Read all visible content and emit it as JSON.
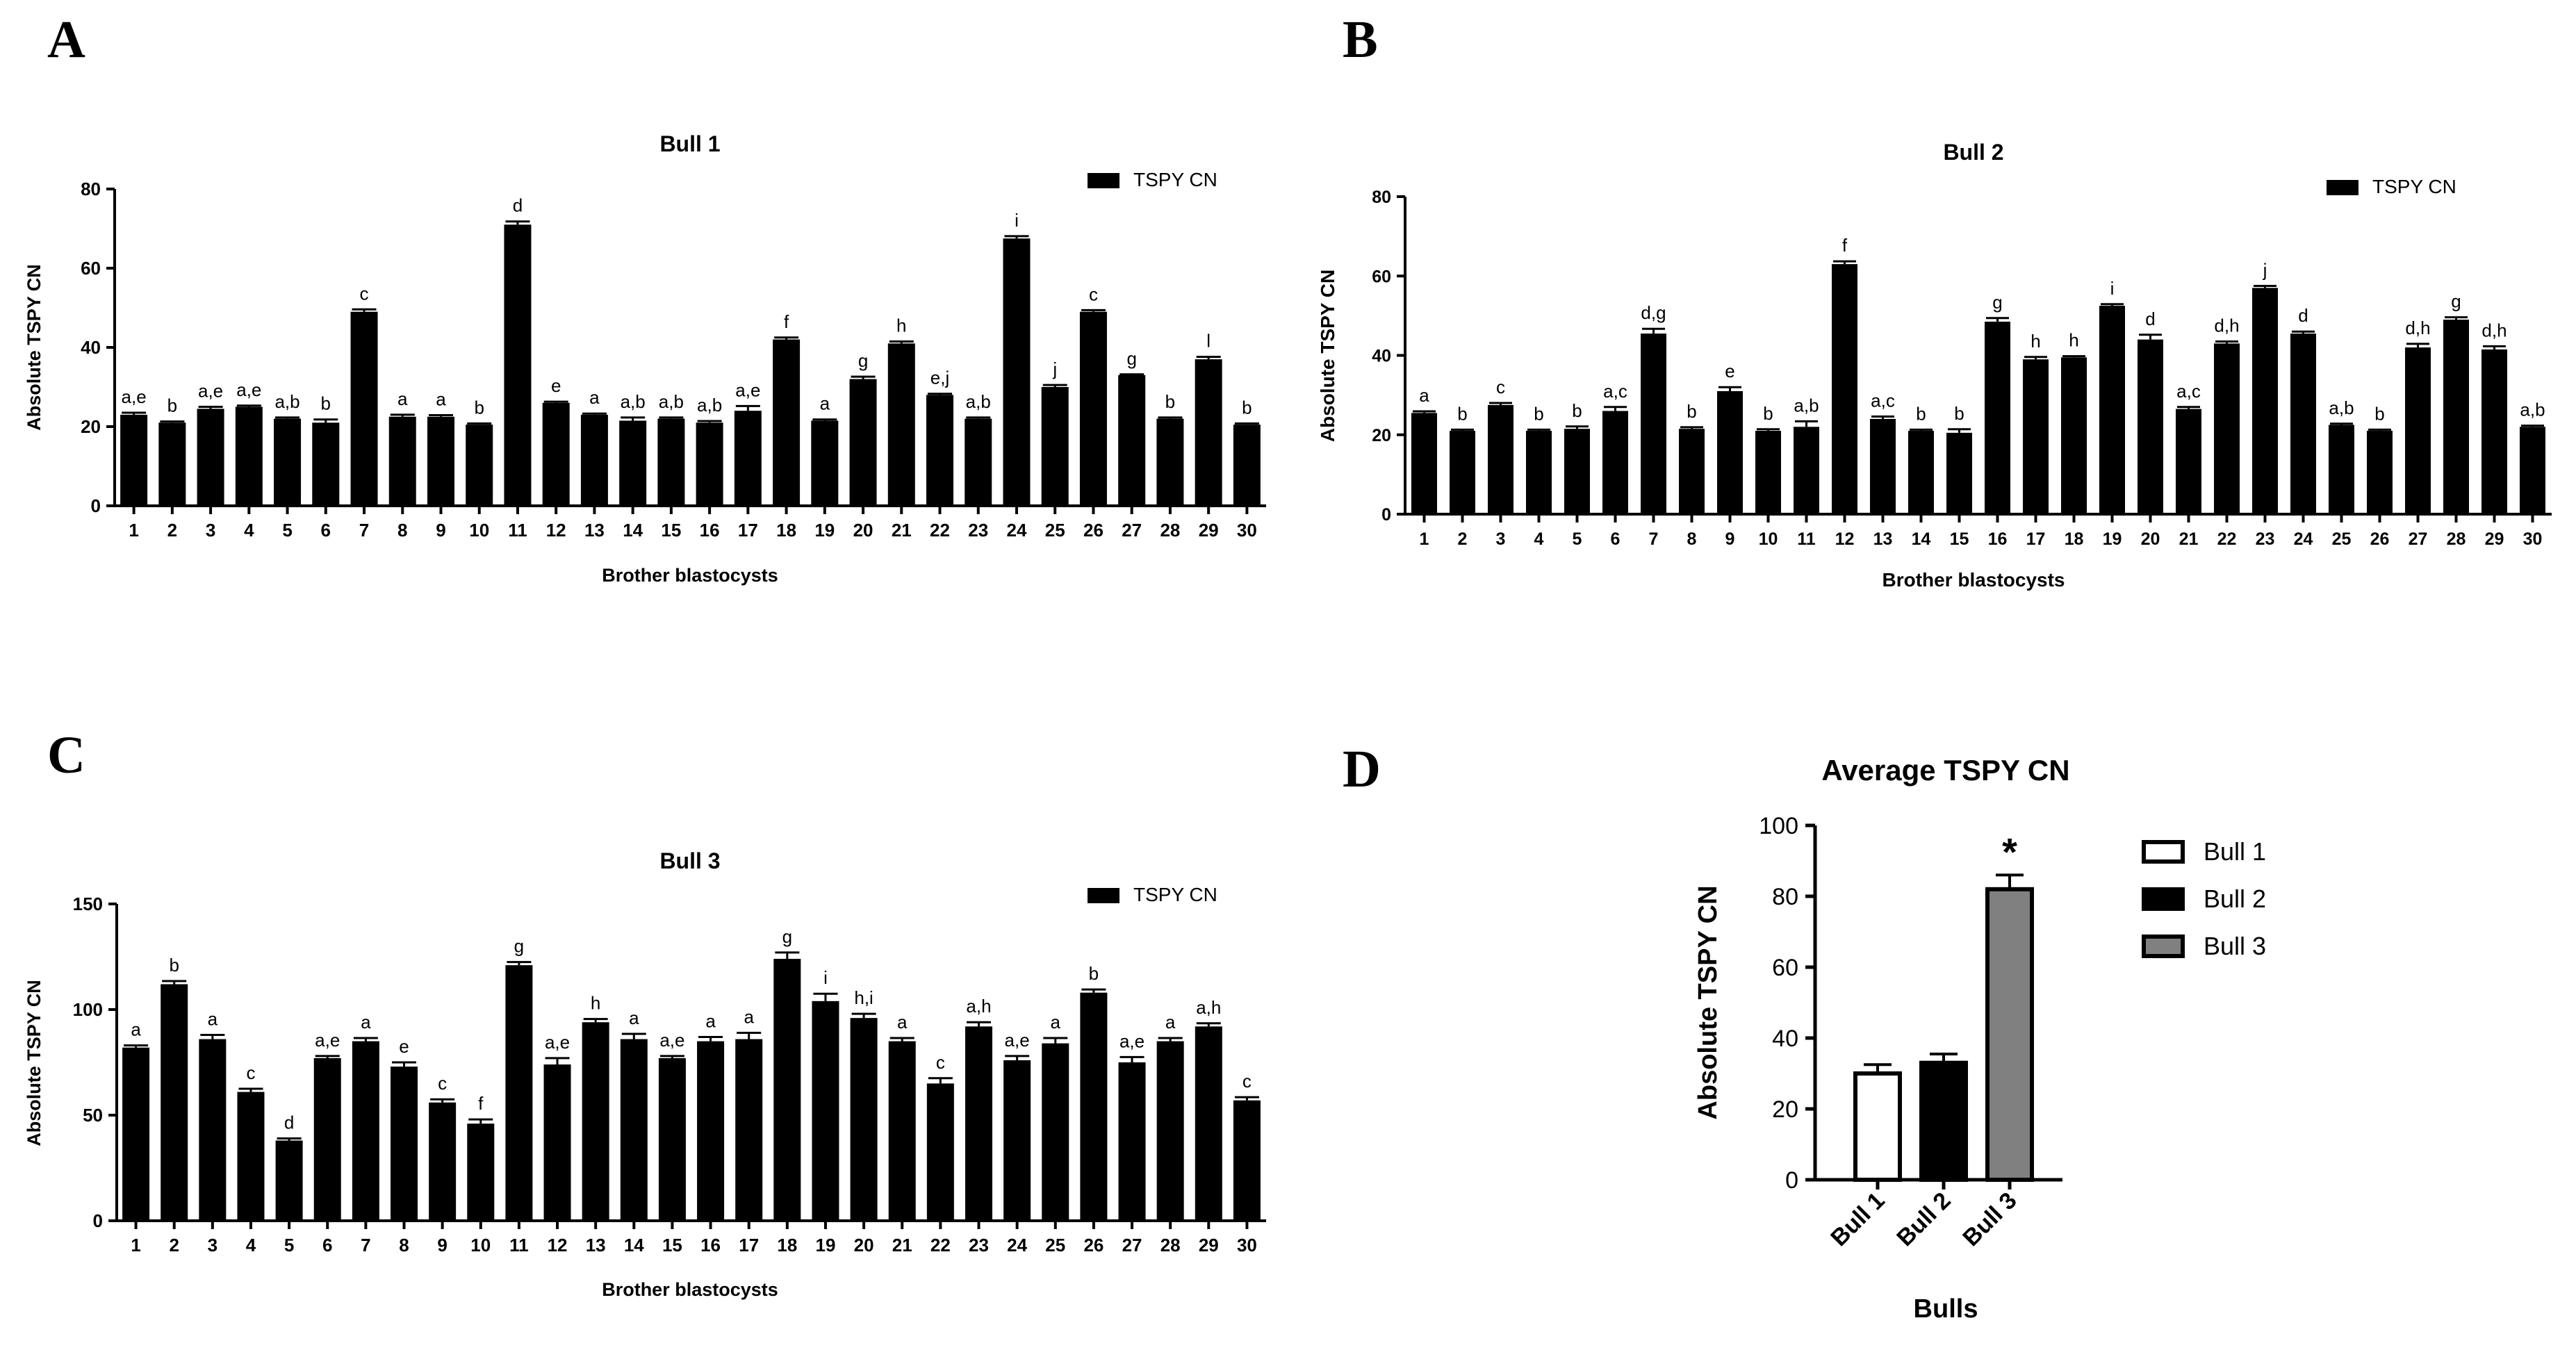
{
  "panels": [
    "A",
    "B",
    "C",
    "D"
  ],
  "chart_data": [
    {
      "id": "A",
      "type": "bar",
      "title": "Bull 1",
      "xlabel": "Brother blastocysts",
      "ylabel": "Absolute TSPY CN",
      "ylim": [
        0,
        80
      ],
      "yticks": [
        0,
        20,
        40,
        60,
        80
      ],
      "grid": false,
      "legend": {
        "position": "top-right",
        "entries": [
          "TSPY CN"
        ]
      },
      "categories": [
        "1",
        "2",
        "3",
        "4",
        "5",
        "6",
        "7",
        "8",
        "9",
        "10",
        "11",
        "12",
        "13",
        "14",
        "15",
        "16",
        "17",
        "18",
        "19",
        "20",
        "21",
        "22",
        "23",
        "24",
        "25",
        "26",
        "27",
        "28",
        "29",
        "30"
      ],
      "series": [
        {
          "name": "TSPY CN",
          "values": [
            23,
            21,
            24.5,
            25,
            22,
            21,
            49,
            22.5,
            22.5,
            20.5,
            71,
            26,
            23,
            21.5,
            22,
            21,
            24,
            42,
            21.5,
            32,
            41,
            28,
            22,
            67.5,
            30,
            49,
            33,
            22,
            37,
            20.5
          ],
          "errors": [
            0.5,
            0.3,
            0.5,
            0.3,
            0.3,
            0.8,
            0.6,
            0.5,
            0.4,
            0.3,
            0.8,
            0.3,
            0.3,
            0.8,
            0.3,
            0.4,
            1.2,
            0.5,
            0.3,
            0.6,
            0.5,
            0.3,
            0.3,
            0.6,
            0.5,
            0.4,
            0.2,
            0.3,
            0.6,
            0.3
          ],
          "labels": [
            "a,e",
            "b",
            "a,e",
            "a,e",
            "a,b",
            "b",
            "c",
            "a",
            "a",
            "b",
            "d",
            "e",
            "a",
            "a,b",
            "a,b",
            "a,b",
            "a,e",
            "f",
            "a",
            "g",
            "h",
            "e,j",
            "a,b",
            "i",
            "j",
            "c",
            "g",
            "b",
            "l",
            "b"
          ]
        }
      ]
    },
    {
      "id": "B",
      "type": "bar",
      "title": "Bull 2",
      "xlabel": "Brother blastocysts",
      "ylabel": "Absolute TSPY CN",
      "ylim": [
        0,
        80
      ],
      "yticks": [
        0,
        20,
        40,
        60,
        80
      ],
      "grid": false,
      "legend": {
        "position": "top-right",
        "entries": [
          "TSPY CN"
        ]
      },
      "categories": [
        "1",
        "2",
        "3",
        "4",
        "5",
        "6",
        "7",
        "8",
        "9",
        "10",
        "11",
        "12",
        "13",
        "14",
        "15",
        "16",
        "17",
        "18",
        "19",
        "20",
        "21",
        "22",
        "23",
        "24",
        "25",
        "26",
        "27",
        "28",
        "29",
        "30"
      ],
      "series": [
        {
          "name": "TSPY CN",
          "values": [
            25.5,
            21,
            27.5,
            21,
            21.5,
            26,
            45.5,
            21.5,
            31,
            21,
            22,
            63,
            24,
            21,
            20.5,
            48.5,
            39,
            39.5,
            52.5,
            44,
            26.5,
            43,
            57,
            45.5,
            22.5,
            21,
            42,
            49,
            41.5,
            22
          ],
          "errors": [
            0.4,
            0.3,
            0.5,
            0.3,
            0.6,
            1.0,
            1.2,
            0.4,
            1.0,
            0.4,
            1.4,
            0.7,
            0.6,
            0.3,
            0.9,
            0.9,
            0.6,
            0.3,
            0.4,
            1.2,
            0.5,
            0.5,
            0.5,
            0.5,
            0.3,
            0.3,
            0.9,
            0.6,
            0.8,
            0.3
          ],
          "labels": [
            "a",
            "b",
            "c",
            "b",
            "b",
            "a,c",
            "d,g",
            "b",
            "e",
            "b",
            "a,b",
            "f",
            "a,c",
            "b",
            "b",
            "g",
            "h",
            "h",
            "i",
            "d",
            "a,c",
            "d,h",
            "j",
            "d",
            "a,b",
            "b",
            "d,h",
            "g",
            "d,h",
            "a,b"
          ]
        }
      ]
    },
    {
      "id": "C",
      "type": "bar",
      "title": "Bull 3",
      "xlabel": "Brother blastocysts",
      "ylabel": "Absolute TSPY CN",
      "ylim": [
        0,
        150
      ],
      "yticks": [
        0,
        50,
        100,
        150
      ],
      "grid": false,
      "legend": {
        "position": "top-right",
        "entries": [
          "TSPY CN"
        ]
      },
      "categories": [
        "1",
        "2",
        "3",
        "4",
        "5",
        "6",
        "7",
        "8",
        "9",
        "10",
        "11",
        "12",
        "13",
        "14",
        "15",
        "16",
        "17",
        "18",
        "19",
        "20",
        "21",
        "22",
        "23",
        "24",
        "25",
        "26",
        "27",
        "28",
        "29",
        "30"
      ],
      "series": [
        {
          "name": "TSPY CN",
          "values": [
            82,
            112,
            86,
            61,
            38,
            77,
            85,
            73,
            56,
            46,
            121,
            74,
            94,
            86,
            77,
            85,
            86,
            124,
            104,
            96,
            85,
            65,
            92,
            76,
            84,
            108,
            75,
            85,
            92,
            57
          ],
          "errors": [
            1.0,
            1.5,
            2.0,
            1.5,
            1.0,
            1.0,
            1.5,
            2.0,
            1.5,
            2.0,
            1.5,
            3.0,
            1.5,
            2.5,
            1.0,
            2.0,
            3.0,
            3.0,
            3.5,
            2.0,
            1.5,
            2.5,
            2.0,
            2.0,
            2.5,
            1.5,
            2.5,
            1.5,
            1.5,
            1.5
          ],
          "labels": [
            "a",
            "b",
            "a",
            "c",
            "d",
            "a,e",
            "a",
            "e",
            "c",
            "f",
            "g",
            "a,e",
            "h",
            "a",
            "a,e",
            "a",
            "a",
            "g",
            "i",
            "h,i",
            "a",
            "c",
            "a,h",
            "a,e",
            "a",
            "b",
            "a,e",
            "a",
            "a,h",
            "c"
          ]
        }
      ]
    },
    {
      "id": "D",
      "type": "bar",
      "title": "Average TSPY CN",
      "xlabel": "Bulls",
      "ylabel": "Absolute  TSPY CN",
      "ylim": [
        0,
        100
      ],
      "yticks": [
        0,
        20,
        40,
        60,
        80,
        100
      ],
      "grid": false,
      "legend": {
        "position": "right",
        "entries": [
          "Bull 1",
          "Bull 2",
          "Bull 3"
        ]
      },
      "categories": [
        "Bull 1",
        "Bull 2",
        "Bull 3"
      ],
      "series": [
        {
          "values": [
            30,
            33,
            82
          ],
          "errors": [
            2.5,
            2.5,
            4
          ],
          "colors": [
            "#ffffff",
            "#000000",
            "#808080"
          ]
        }
      ],
      "annotations": [
        {
          "category": "Bull 3",
          "text": "*"
        }
      ]
    }
  ]
}
